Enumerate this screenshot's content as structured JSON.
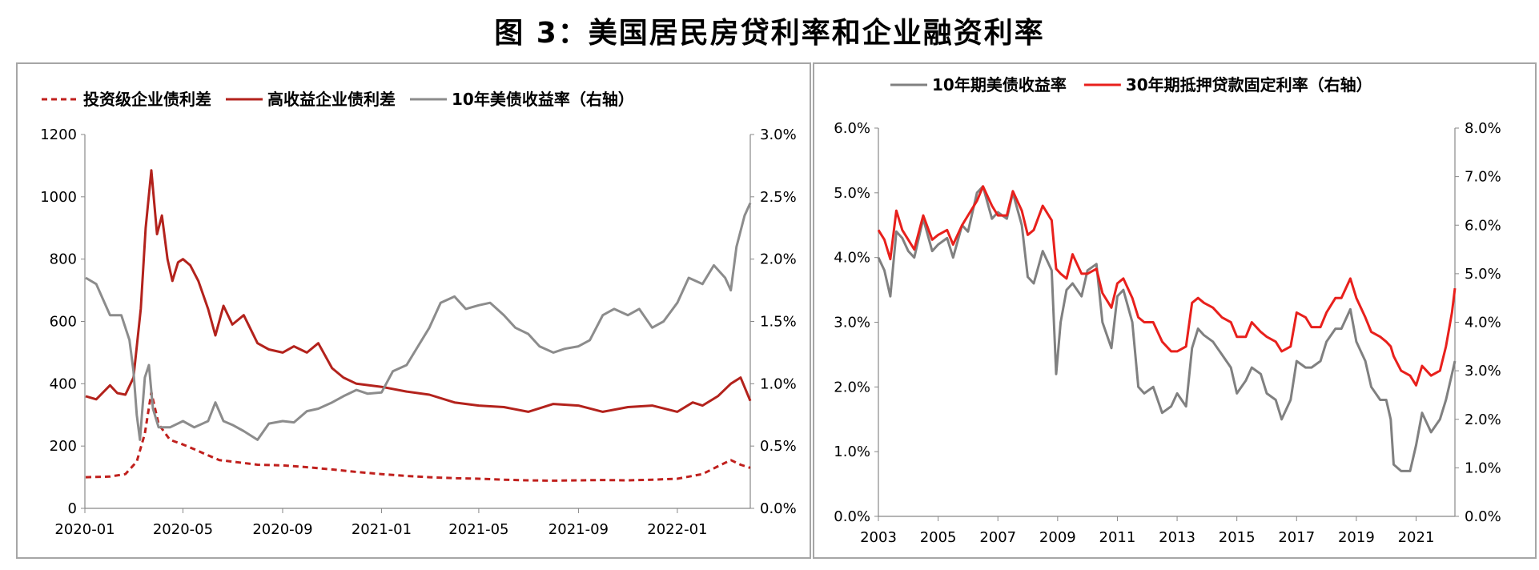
{
  "figure_title": "图 3：美国居民房贷利率和企业融资利率",
  "chart_data": [
    {
      "type": "line",
      "title": "",
      "legend_position": "top",
      "x_tick_labels": [
        "2020-01",
        "2020-05",
        "2020-09",
        "2021-01",
        "2021-05",
        "2021-09",
        "2022-01"
      ],
      "y_left": {
        "ylim": [
          0,
          1200
        ],
        "ticks": [
          "0",
          "200",
          "400",
          "600",
          "800",
          "1000",
          "1200"
        ]
      },
      "y_right": {
        "ylim": [
          0,
          3.0
        ],
        "ticks": [
          "0.0%",
          "0.5%",
          "1.0%",
          "1.5%",
          "2.0%",
          "2.5%",
          "3.0%"
        ]
      },
      "series": [
        {
          "name": "投资级企业债利差",
          "axis": "left",
          "color": "#c0201d",
          "style": "dashed",
          "x": [
            "2020-01-02",
            "2020-02-01",
            "2020-02-20",
            "2020-03-05",
            "2020-03-15",
            "2020-03-23",
            "2020-04-01",
            "2020-04-15",
            "2020-05-01",
            "2020-05-15",
            "2020-06-01",
            "2020-06-15",
            "2020-07-01",
            "2020-08-01",
            "2020-09-01",
            "2020-10-01",
            "2020-11-01",
            "2020-12-01",
            "2021-01-01",
            "2021-02-01",
            "2021-03-01",
            "2021-04-01",
            "2021-05-01",
            "2021-06-01",
            "2021-07-01",
            "2021-08-01",
            "2021-09-01",
            "2021-10-01",
            "2021-11-01",
            "2021-12-01",
            "2022-01-01",
            "2022-02-01",
            "2022-02-20",
            "2022-03-08",
            "2022-03-20",
            "2022-04-01"
          ],
          "values": [
            100,
            102,
            110,
            150,
            240,
            373,
            270,
            220,
            205,
            190,
            170,
            155,
            150,
            140,
            138,
            132,
            125,
            117,
            110,
            104,
            100,
            97,
            95,
            92,
            90,
            89,
            90,
            91,
            90,
            92,
            95,
            110,
            135,
            155,
            140,
            130
          ]
        },
        {
          "name": "高收益企业债利差",
          "axis": "left",
          "color": "#b3221c",
          "style": "solid",
          "x": [
            "2020-01-02",
            "2020-01-15",
            "2020-02-01",
            "2020-02-10",
            "2020-02-20",
            "2020-03-01",
            "2020-03-10",
            "2020-03-16",
            "2020-03-23",
            "2020-03-30",
            "2020-04-05",
            "2020-04-12",
            "2020-04-18",
            "2020-04-25",
            "2020-05-01",
            "2020-05-10",
            "2020-05-20",
            "2020-06-01",
            "2020-06-10",
            "2020-06-20",
            "2020-07-01",
            "2020-07-15",
            "2020-08-01",
            "2020-08-15",
            "2020-09-01",
            "2020-09-15",
            "2020-10-01",
            "2020-10-15",
            "2020-11-01",
            "2020-11-15",
            "2020-12-01",
            "2021-01-01",
            "2021-02-01",
            "2021-03-01",
            "2021-04-01",
            "2021-05-01",
            "2021-06-01",
            "2021-07-01",
            "2021-08-01",
            "2021-09-01",
            "2021-10-01",
            "2021-11-01",
            "2021-12-01",
            "2022-01-01",
            "2022-01-20",
            "2022-02-01",
            "2022-02-20",
            "2022-03-08",
            "2022-03-20",
            "2022-04-01"
          ],
          "values": [
            360,
            350,
            395,
            370,
            365,
            420,
            640,
            900,
            1085,
            880,
            940,
            800,
            730,
            790,
            800,
            780,
            730,
            640,
            555,
            650,
            590,
            620,
            530,
            510,
            500,
            520,
            500,
            530,
            450,
            420,
            400,
            390,
            375,
            365,
            340,
            330,
            325,
            310,
            335,
            330,
            310,
            325,
            330,
            310,
            340,
            330,
            360,
            400,
            420,
            345
          ]
        },
        {
          "name": "10年美债收益率（右轴）",
          "axis": "right",
          "color": "#8c8c8c",
          "style": "solid",
          "x": [
            "2020-01-02",
            "2020-01-15",
            "2020-02-01",
            "2020-02-15",
            "2020-02-25",
            "2020-03-01",
            "2020-03-05",
            "2020-03-09",
            "2020-03-15",
            "2020-03-20",
            "2020-03-25",
            "2020-04-01",
            "2020-04-15",
            "2020-05-01",
            "2020-05-15",
            "2020-06-01",
            "2020-06-10",
            "2020-06-20",
            "2020-07-01",
            "2020-07-15",
            "2020-08-01",
            "2020-08-15",
            "2020-09-01",
            "2020-09-15",
            "2020-10-01",
            "2020-10-15",
            "2020-11-01",
            "2020-11-15",
            "2020-12-01",
            "2020-12-15",
            "2021-01-01",
            "2021-01-15",
            "2021-02-01",
            "2021-02-15",
            "2021-03-01",
            "2021-03-15",
            "2021-04-01",
            "2021-04-15",
            "2021-05-01",
            "2021-05-15",
            "2021-06-01",
            "2021-06-15",
            "2021-07-01",
            "2021-07-15",
            "2021-08-01",
            "2021-08-15",
            "2021-09-01",
            "2021-09-15",
            "2021-10-01",
            "2021-10-15",
            "2021-11-01",
            "2021-11-15",
            "2021-12-01",
            "2021-12-15",
            "2022-01-01",
            "2022-01-15",
            "2022-02-01",
            "2022-02-15",
            "2022-03-01",
            "2022-03-08",
            "2022-03-15",
            "2022-03-25",
            "2022-04-01"
          ],
          "values": [
            1.85,
            1.8,
            1.55,
            1.55,
            1.35,
            1.1,
            0.75,
            0.55,
            1.05,
            1.15,
            0.8,
            0.65,
            0.65,
            0.7,
            0.65,
            0.7,
            0.85,
            0.7,
            0.67,
            0.62,
            0.55,
            0.68,
            0.7,
            0.69,
            0.78,
            0.8,
            0.85,
            0.9,
            0.95,
            0.92,
            0.93,
            1.1,
            1.15,
            1.3,
            1.45,
            1.65,
            1.7,
            1.6,
            1.63,
            1.65,
            1.55,
            1.45,
            1.4,
            1.3,
            1.25,
            1.28,
            1.3,
            1.35,
            1.55,
            1.6,
            1.55,
            1.6,
            1.45,
            1.5,
            1.65,
            1.85,
            1.8,
            1.95,
            1.85,
            1.75,
            2.1,
            2.35,
            2.45
          ]
        }
      ]
    },
    {
      "type": "line",
      "title": "",
      "legend_position": "top",
      "x_tick_labels": [
        "2003",
        "2005",
        "2007",
        "2009",
        "2011",
        "2013",
        "2015",
        "2017",
        "2019",
        "2021"
      ],
      "y_left": {
        "ylim": [
          0,
          6.0
        ],
        "ticks": [
          "0.0%",
          "1.0%",
          "2.0%",
          "3.0%",
          "4.0%",
          "5.0%",
          "6.0%"
        ]
      },
      "y_right": {
        "ylim": [
          0,
          8.0
        ],
        "ticks": [
          "0.0%",
          "1.0%",
          "2.0%",
          "3.0%",
          "4.0%",
          "5.0%",
          "6.0%",
          "7.0%",
          "8.0%"
        ]
      },
      "series": [
        {
          "name": "10年期美债收益率",
          "axis": "left",
          "color": "#808080",
          "style": "solid",
          "x": [
            2003.0,
            2003.2,
            2003.4,
            2003.6,
            2003.8,
            2004.0,
            2004.2,
            2004.5,
            2004.8,
            2005.0,
            2005.3,
            2005.5,
            2005.8,
            2006.0,
            2006.3,
            2006.5,
            2006.8,
            2007.0,
            2007.3,
            2007.5,
            2007.8,
            2008.0,
            2008.2,
            2008.5,
            2008.8,
            2008.95,
            2009.1,
            2009.3,
            2009.5,
            2009.8,
            2010.0,
            2010.3,
            2010.5,
            2010.8,
            2011.0,
            2011.2,
            2011.5,
            2011.7,
            2011.9,
            2012.2,
            2012.5,
            2012.8,
            2013.0,
            2013.3,
            2013.5,
            2013.7,
            2013.9,
            2014.2,
            2014.5,
            2014.8,
            2015.0,
            2015.3,
            2015.5,
            2015.8,
            2016.0,
            2016.3,
            2016.5,
            2016.8,
            2017.0,
            2017.3,
            2017.5,
            2017.8,
            2018.0,
            2018.3,
            2018.5,
            2018.8,
            2019.0,
            2019.3,
            2019.5,
            2019.8,
            2020.0,
            2020.15,
            2020.25,
            2020.5,
            2020.8,
            2021.0,
            2021.2,
            2021.5,
            2021.8,
            2022.0,
            2022.2,
            2022.3
          ],
          "values": [
            4.0,
            3.8,
            3.4,
            4.4,
            4.3,
            4.1,
            4.0,
            4.6,
            4.1,
            4.2,
            4.3,
            4.0,
            4.5,
            4.4,
            5.0,
            5.1,
            4.6,
            4.7,
            4.6,
            5.0,
            4.5,
            3.7,
            3.6,
            4.1,
            3.8,
            2.2,
            3.0,
            3.5,
            3.6,
            3.4,
            3.8,
            3.9,
            3.0,
            2.6,
            3.4,
            3.5,
            3.0,
            2.0,
            1.9,
            2.0,
            1.6,
            1.7,
            1.9,
            1.7,
            2.6,
            2.9,
            2.8,
            2.7,
            2.5,
            2.3,
            1.9,
            2.1,
            2.3,
            2.2,
            1.9,
            1.8,
            1.5,
            1.8,
            2.4,
            2.3,
            2.3,
            2.4,
            2.7,
            2.9,
            2.9,
            3.2,
            2.7,
            2.4,
            2.0,
            1.8,
            1.8,
            1.5,
            0.8,
            0.7,
            0.7,
            1.1,
            1.6,
            1.3,
            1.5,
            1.8,
            2.2,
            2.4
          ]
        },
        {
          "name": "30年期抵押贷款固定利率（右轴）",
          "axis": "right",
          "color": "#e8201c",
          "style": "solid",
          "x": [
            2003.0,
            2003.2,
            2003.4,
            2003.6,
            2003.8,
            2004.0,
            2004.2,
            2004.5,
            2004.8,
            2005.0,
            2005.3,
            2005.5,
            2005.8,
            2006.0,
            2006.3,
            2006.5,
            2006.8,
            2007.0,
            2007.3,
            2007.5,
            2007.8,
            2008.0,
            2008.2,
            2008.5,
            2008.8,
            2008.95,
            2009.1,
            2009.3,
            2009.5,
            2009.8,
            2010.0,
            2010.3,
            2010.5,
            2010.8,
            2011.0,
            2011.2,
            2011.5,
            2011.7,
            2011.9,
            2012.2,
            2012.5,
            2012.8,
            2013.0,
            2013.3,
            2013.5,
            2013.7,
            2013.9,
            2014.2,
            2014.5,
            2014.8,
            2015.0,
            2015.3,
            2015.5,
            2015.8,
            2016.0,
            2016.3,
            2016.5,
            2016.8,
            2017.0,
            2017.3,
            2017.5,
            2017.8,
            2018.0,
            2018.3,
            2018.5,
            2018.8,
            2019.0,
            2019.3,
            2019.5,
            2019.8,
            2020.0,
            2020.15,
            2020.25,
            2020.5,
            2020.8,
            2021.0,
            2021.2,
            2021.5,
            2021.8,
            2022.0,
            2022.2,
            2022.3
          ],
          "values": [
            5.9,
            5.7,
            5.3,
            6.3,
            5.9,
            5.7,
            5.5,
            6.2,
            5.7,
            5.8,
            5.9,
            5.6,
            6.0,
            6.2,
            6.5,
            6.8,
            6.4,
            6.2,
            6.2,
            6.7,
            6.3,
            5.8,
            5.9,
            6.4,
            6.1,
            5.1,
            5.0,
            4.9,
            5.4,
            5.0,
            5.0,
            5.1,
            4.6,
            4.3,
            4.8,
            4.9,
            4.5,
            4.1,
            4.0,
            4.0,
            3.6,
            3.4,
            3.4,
            3.5,
            4.4,
            4.5,
            4.4,
            4.3,
            4.1,
            4.0,
            3.7,
            3.7,
            4.0,
            3.8,
            3.7,
            3.6,
            3.4,
            3.5,
            4.2,
            4.1,
            3.9,
            3.9,
            4.2,
            4.5,
            4.5,
            4.9,
            4.5,
            4.1,
            3.8,
            3.7,
            3.6,
            3.5,
            3.3,
            3.0,
            2.9,
            2.7,
            3.1,
            2.9,
            3.0,
            3.5,
            4.2,
            4.7
          ]
        }
      ]
    }
  ]
}
